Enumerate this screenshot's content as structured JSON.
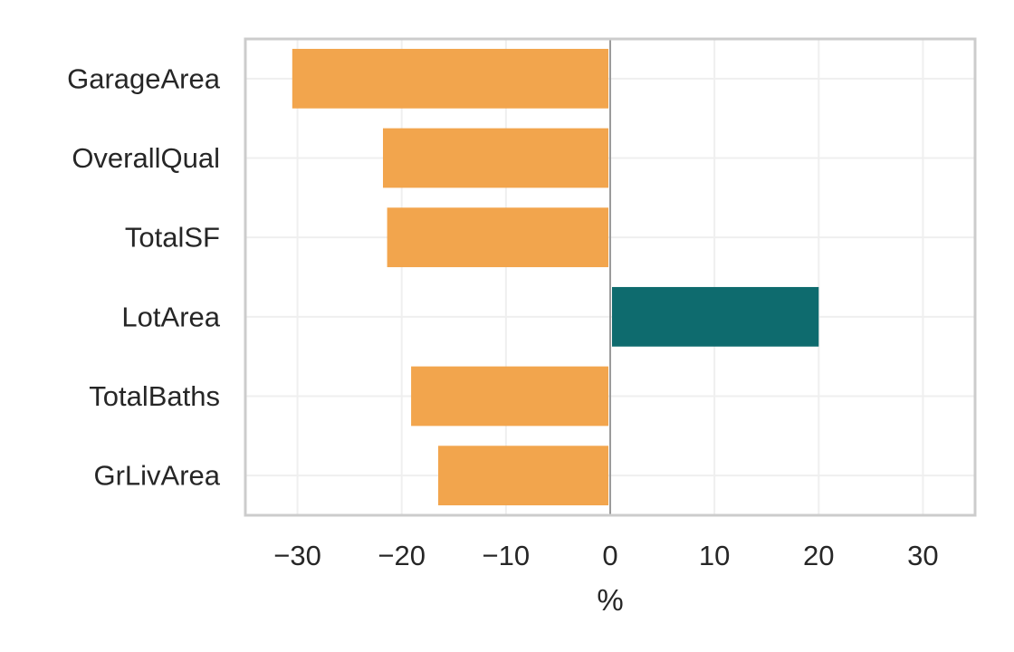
{
  "chart_data": {
    "type": "bar",
    "orientation": "horizontal",
    "categories": [
      "GarageArea",
      "OverallQual",
      "TotalSF",
      "LotArea",
      "TotalBaths",
      "GrLivArea"
    ],
    "values": [
      -30.5,
      -21.8,
      -21.4,
      20.0,
      -19.1,
      -16.5
    ],
    "xlabel": "%",
    "ylabel": "",
    "xlim": [
      -35,
      35
    ],
    "xticks": [
      -30,
      -20,
      -10,
      0,
      10,
      20,
      30
    ],
    "xtick_labels": [
      "−30",
      "−20",
      "−10",
      "0",
      "10",
      "20",
      "30"
    ],
    "grid": true,
    "colors": {
      "negative": "#F2A54D",
      "positive": "#0E6B6E",
      "zero_line": "#9a9a9a",
      "grid": "#efefef",
      "frame": "#cccccc",
      "text": "#262626"
    }
  }
}
